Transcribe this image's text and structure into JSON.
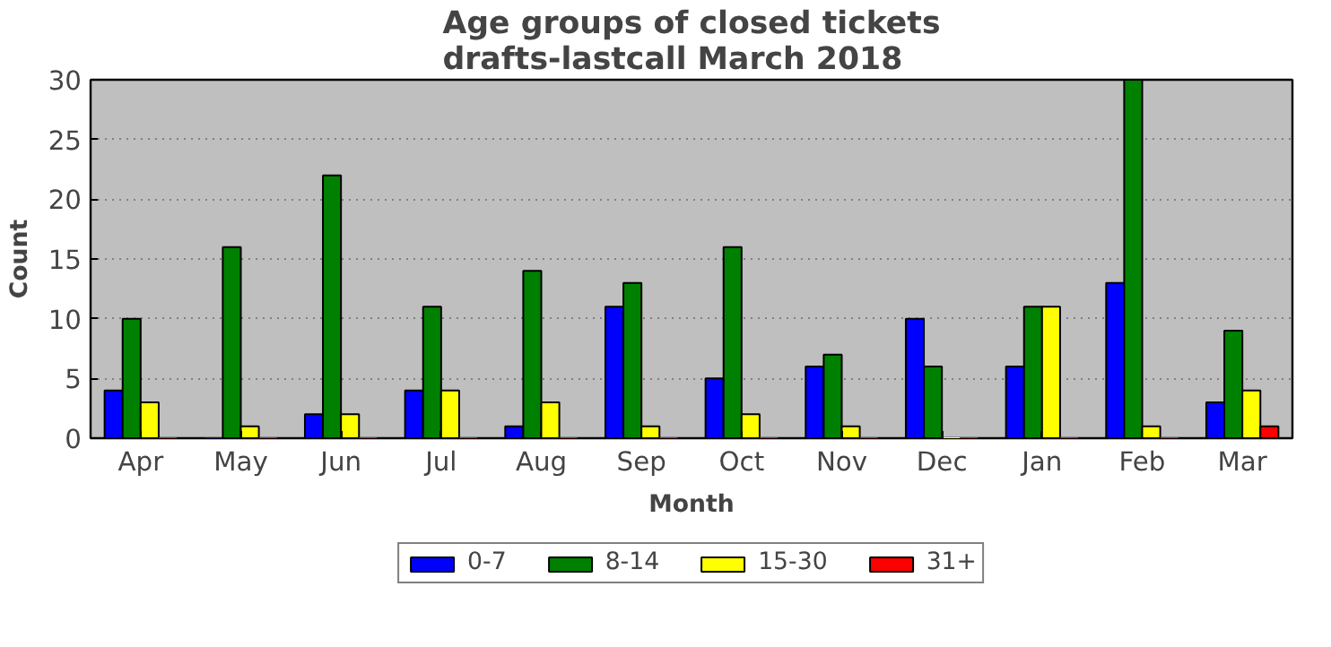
{
  "chart_data": {
    "type": "bar",
    "title": "Age groups of closed tickets\ndrafts-lastcall March 2018",
    "xlabel": "Month",
    "ylabel": "Count",
    "categories": [
      "Apr",
      "May",
      "Jun",
      "Jul",
      "Aug",
      "Sep",
      "Oct",
      "Nov",
      "Dec",
      "Jan",
      "Feb",
      "Mar"
    ],
    "series": [
      {
        "name": "0-7",
        "color": "#0000ff",
        "values": [
          4,
          0,
          2,
          4,
          1,
          11,
          5,
          6,
          10,
          6,
          13,
          3
        ]
      },
      {
        "name": "8-14",
        "color": "#008000",
        "values": [
          10,
          16,
          22,
          11,
          14,
          13,
          16,
          7,
          6,
          11,
          30,
          9
        ]
      },
      {
        "name": "15-30",
        "color": "#ffff00",
        "values": [
          3,
          1,
          2,
          4,
          3,
          1,
          2,
          1,
          0,
          11,
          1,
          4
        ]
      },
      {
        "name": "31+",
        "color": "#ff0000",
        "values": [
          0,
          0,
          0,
          0,
          0,
          0,
          0,
          0,
          0,
          0,
          0,
          1
        ]
      }
    ],
    "ylim": [
      0,
      30
    ],
    "yticks": [
      0,
      5,
      10,
      15,
      20,
      25,
      30
    ],
    "grid": "y",
    "legend": "bottom"
  }
}
